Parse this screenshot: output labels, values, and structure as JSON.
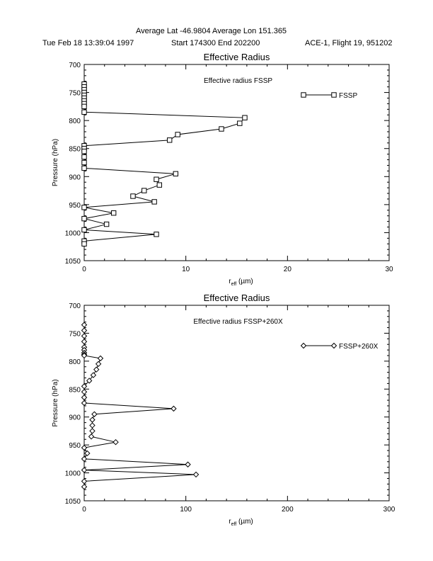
{
  "header": {
    "line1": "Average Lat  -46.9804  Average Lon  151.365",
    "datetime": "Tue Feb 18 13:39:04 1997",
    "time_range": "Start  174300  End  202200",
    "flight": "ACE-1, Flight 19, 951202"
  },
  "chart_data": [
    {
      "type": "line",
      "title": "Effective Radius",
      "annotation": "Effective radius FSSP",
      "xlabel_main": "r",
      "xlabel_sub": "eff",
      "xlabel_unit": " (µm)",
      "ylabel": "Pressure (hPa)",
      "xlim": [
        0,
        30
      ],
      "ylim": [
        700,
        1050
      ],
      "y_inverted": true,
      "xticks": [
        0,
        10,
        20,
        30
      ],
      "yticks": [
        700,
        750,
        800,
        850,
        900,
        950,
        1000,
        1050
      ],
      "legend_position": "top-right",
      "series": [
        {
          "name": "FSSP",
          "marker": "square",
          "x": [
            0,
            0,
            0,
            0,
            0,
            0,
            0,
            0,
            0,
            0,
            15.8,
            15.3,
            13.5,
            9.2,
            8.4,
            0,
            0,
            0,
            0,
            0,
            0,
            9.0,
            7.1,
            7.4,
            5.9,
            4.8,
            6.9,
            0,
            2.9,
            0,
            2.2,
            0,
            7.1,
            0,
            0
          ],
          "y": [
            735,
            740,
            745,
            750,
            755,
            760,
            765,
            770,
            775,
            785,
            795,
            805,
            815,
            825,
            835,
            845,
            850,
            855,
            865,
            875,
            885,
            895,
            905,
            915,
            925,
            935,
            945,
            955,
            965,
            975,
            985,
            995,
            1003,
            1015,
            1020
          ]
        }
      ]
    },
    {
      "type": "line",
      "title": "Effective Radius",
      "annotation": "Effective radius FSSP+260X",
      "xlabel_main": "r",
      "xlabel_sub": "eff",
      "xlabel_unit": " (µm)",
      "ylabel": "Pressure (hPa)",
      "xlim": [
        0,
        300
      ],
      "ylim": [
        700,
        1050
      ],
      "y_inverted": true,
      "xticks": [
        0,
        100,
        200,
        300
      ],
      "yticks": [
        700,
        750,
        800,
        850,
        900,
        950,
        1000,
        1050
      ],
      "legend_position": "top-right",
      "series": [
        {
          "name": "FSSP+260X",
          "marker": "diamond",
          "x": [
            0,
            0,
            0,
            0,
            0,
            0,
            0,
            0,
            0,
            16,
            14,
            12,
            9,
            5,
            0,
            0,
            0,
            0,
            88,
            10,
            8,
            8,
            8,
            7,
            31,
            0,
            3,
            0,
            102,
            0,
            110,
            0,
            0
          ],
          "y": [
            735,
            745,
            755,
            765,
            775,
            780,
            785,
            788,
            790,
            795,
            805,
            815,
            825,
            835,
            845,
            855,
            865,
            875,
            885,
            895,
            905,
            915,
            925,
            935,
            945,
            955,
            965,
            975,
            985,
            995,
            1003,
            1015,
            1025
          ]
        }
      ]
    }
  ]
}
